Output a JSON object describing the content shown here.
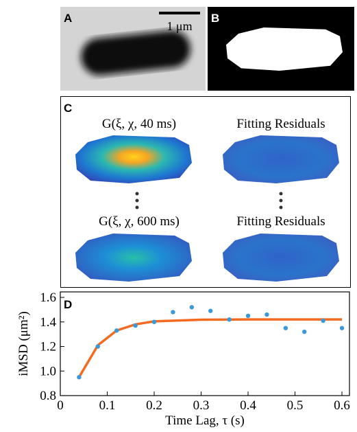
{
  "panels": {
    "a": {
      "label": "A",
      "scale_bar": "1 μm"
    },
    "b": {
      "label": "B"
    },
    "c": {
      "label": "C",
      "titles": [
        "G(ξ, χ, 40 ms)",
        "Fitting Residuals",
        "G(ξ, χ, 600 ms)",
        "Fitting Residuals"
      ]
    }
  },
  "chart_data": {
    "type": "scatter",
    "label": "D",
    "xlabel": "Time Lag, τ (s)",
    "ylabel": "iMSD (μm²)",
    "xlim": [
      0,
      0.616
    ],
    "ylim": [
      0.8,
      1.6
    ],
    "xticks": [
      0,
      0.1,
      0.2,
      0.3,
      0.4,
      0.5,
      0.6
    ],
    "yticks": [
      0.8,
      {
        "value": 1,
        "label": "1.0"
      },
      1.2,
      1.4,
      1.6
    ],
    "series": [
      {
        "type": "line",
        "color": "#f26b21",
        "x": [
          0.04,
          0.08,
          0.12,
          0.16,
          0.2,
          0.3,
          0.4,
          0.5,
          0.6
        ],
        "values": [
          0.95,
          1.21,
          1.33,
          1.38,
          1.405,
          1.418,
          1.42,
          1.42,
          1.42
        ]
      },
      {
        "type": "scatter",
        "color": "#3a9ad9",
        "x": [
          0.04,
          0.08,
          0.12,
          0.16,
          0.2,
          0.24,
          0.28,
          0.32,
          0.36,
          0.4,
          0.44,
          0.48,
          0.52,
          0.56,
          0.6
        ],
        "values": [
          0.95,
          1.2,
          1.33,
          1.37,
          1.4,
          1.48,
          1.52,
          1.49,
          1.42,
          1.45,
          1.46,
          1.35,
          1.32,
          1.41,
          1.35
        ]
      }
    ]
  }
}
